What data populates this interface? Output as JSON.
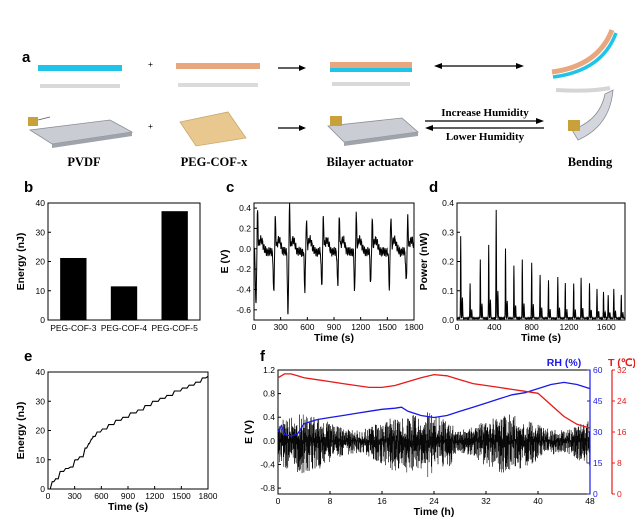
{
  "panel_a": {
    "letter": "a",
    "plus_symbol": "+",
    "captions": [
      "PVDF",
      "PEG-COF-x",
      "Bilayer actuator",
      "Bending"
    ],
    "arrow_increase": "Increase Humidity",
    "arrow_lower": "Lower Humidity",
    "colors": {
      "pvdf_film": "#1EC5E8",
      "cof_film": "#E8A77E"
    }
  },
  "panels": [
    {
      "letter": "b",
      "chart_data": {
        "type": "bar",
        "categories": [
          "PEG-COF-3",
          "PEG-COF-4",
          "PEG-COF-5"
        ],
        "values": [
          21.2,
          11.5,
          37.2
        ],
        "xlabel": "",
        "ylabel": "Energy (nJ)",
        "ylim": [
          0,
          40
        ],
        "yticks": [
          0,
          10,
          20,
          30,
          40
        ]
      }
    },
    {
      "letter": "c",
      "chart_data": {
        "type": "line",
        "xlabel": "Time (s)",
        "ylabel": "E (V)",
        "xlim": [
          0,
          1800
        ],
        "ylim": [
          -0.7,
          0.45
        ],
        "xticks": [
          0,
          300,
          600,
          900,
          1200,
          1500,
          1800
        ],
        "yticks": [
          -0.6,
          -0.4,
          -0.2,
          0.0,
          0.2,
          0.4
        ],
        "ytick_labels": [
          "-0.6",
          "-0.4",
          "-0.2",
          "0.0",
          "0.2",
          "0.4"
        ],
        "peak_times": [
          40,
          240,
          400,
          590,
          780,
          960,
          1150,
          1330,
          1540,
          1730
        ],
        "peak_positive": [
          0.38,
          0.32,
          0.42,
          0.3,
          0.32,
          0.33,
          0.35,
          0.3,
          0.34,
          0.32
        ],
        "peak_negative": [
          -0.55,
          -0.42,
          -0.65,
          -0.38,
          -0.35,
          -0.34,
          -0.38,
          -0.32,
          -0.35,
          -0.3
        ],
        "baseline": -0.03
      }
    },
    {
      "letter": "d",
      "chart_data": {
        "type": "line",
        "xlabel": "Time (s)",
        "ylabel": "Power (nW)",
        "xlim": [
          0,
          1800
        ],
        "ylim": [
          0,
          0.4
        ],
        "xticks": [
          0,
          400,
          800,
          1200,
          1600
        ],
        "yticks": [
          0.0,
          0.1,
          0.2,
          0.3,
          0.4
        ],
        "ytick_labels": [
          "0.0",
          "0.1",
          "0.2",
          "0.3",
          "0.4"
        ],
        "spike_times": [
          40,
          140,
          250,
          340,
          420,
          520,
          610,
          700,
          800,
          890,
          980,
          1080,
          1160,
          1250,
          1330,
          1420,
          1500,
          1570,
          1620,
          1680,
          1760
        ],
        "spike_heights": [
          0.28,
          0.12,
          0.2,
          0.25,
          0.37,
          0.24,
          0.18,
          0.2,
          0.19,
          0.15,
          0.13,
          0.14,
          0.12,
          0.12,
          0.14,
          0.12,
          0.1,
          0.09,
          0.08,
          0.1,
          0.08
        ]
      }
    },
    {
      "letter": "e",
      "chart_data": {
        "type": "line",
        "xlabel": "Time (s)",
        "ylabel": "Energy (nJ)",
        "xlim": [
          0,
          1800
        ],
        "ylim": [
          0,
          40
        ],
        "xticks": [
          0,
          300,
          600,
          900,
          1200,
          1500,
          1800
        ],
        "yticks": [
          0,
          10,
          20,
          30,
          40
        ],
        "x": [
          0,
          50,
          80,
          150,
          200,
          260,
          300,
          370,
          420,
          450,
          480,
          500,
          560,
          620,
          700,
          780,
          860,
          950,
          1030,
          1110,
          1200,
          1280,
          1350,
          1450,
          1530,
          1600,
          1680,
          1750,
          1800
        ],
        "y": [
          0,
          2.5,
          3.5,
          6,
          7,
          7.5,
          10,
          11,
          14,
          15.5,
          17,
          18,
          19.5,
          20.5,
          22,
          23.5,
          24.5,
          26,
          27,
          28.5,
          30,
          31,
          32,
          33.5,
          34.5,
          35.5,
          36.5,
          38,
          38.5
        ]
      }
    },
    {
      "letter": "f",
      "chart_data": {
        "type": "line",
        "xlabel": "Time (h)",
        "ylabel": "E (V)",
        "xlim": [
          0,
          48
        ],
        "ylim": [
          -0.9,
          1.2
        ],
        "xticks": [
          0,
          8,
          16,
          24,
          32,
          40,
          48
        ],
        "yticks": [
          -0.8,
          -0.4,
          0.0,
          0.4,
          0.8,
          1.2
        ],
        "ytick_labels": [
          "-0.8",
          "-0.4",
          "0.0",
          "0.4",
          "0.8",
          "1.2"
        ],
        "right_axis_rh": {
          "label": "RH (%)",
          "ylim": [
            0,
            60
          ],
          "yticks": [
            0,
            15,
            30,
            45,
            60
          ],
          "color": "#1A1AE6",
          "x": [
            0,
            0.5,
            1,
            2,
            3,
            4,
            6,
            8,
            10,
            12,
            14,
            16,
            18,
            19,
            20,
            22,
            24,
            26,
            28,
            30,
            32,
            34,
            36,
            38,
            40,
            42,
            44,
            46,
            48
          ],
          "y": [
            30,
            33,
            29,
            28,
            29,
            34,
            36,
            37,
            38,
            39,
            40,
            41,
            41.5,
            42,
            40,
            38,
            37,
            38,
            40,
            42,
            44,
            46,
            48,
            49,
            51,
            53,
            54,
            53,
            51
          ]
        },
        "right_axis_t": {
          "label": "T (℃)",
          "ylim": [
            0,
            32
          ],
          "yticks": [
            0,
            8,
            16,
            24,
            32
          ],
          "color": "#E61A1A",
          "x": [
            0,
            1,
            2,
            3,
            4,
            6,
            8,
            10,
            12,
            14,
            16,
            18,
            20,
            22,
            24,
            26,
            28,
            30,
            32,
            34,
            36,
            38,
            40,
            42,
            44,
            46,
            48
          ],
          "y": [
            30,
            31,
            31,
            30.5,
            30,
            29.5,
            29,
            28.5,
            28,
            27.5,
            27.5,
            28,
            29,
            30,
            30.8,
            30.5,
            29.5,
            28.5,
            28,
            27.5,
            27,
            26.5,
            26,
            23,
            20,
            18,
            17
          ]
        },
        "signal_envelope_hi": 0.45,
        "signal_envelope_lo": -0.55
      }
    }
  ]
}
